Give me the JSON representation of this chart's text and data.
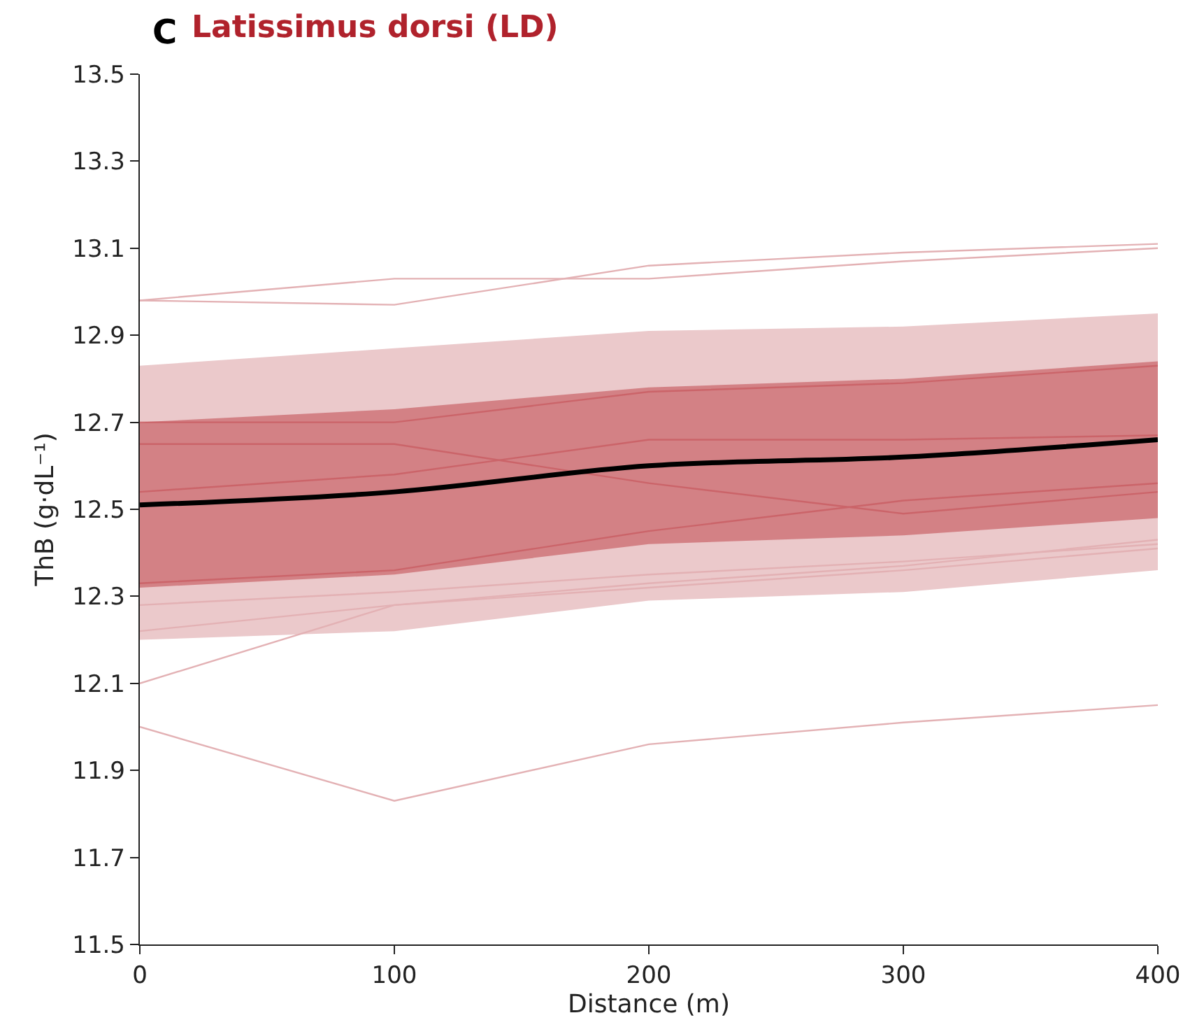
{
  "chart_data": {
    "type": "line",
    "title": "Latissimus dorsi (LD)",
    "annotations": [
      "C"
    ],
    "xlabel": "Distance (m)",
    "ylabel": "ThB (g·dL⁻¹)",
    "x": [
      0,
      100,
      200,
      300,
      400
    ],
    "xlim": [
      0,
      400
    ],
    "xticks": [
      0,
      100,
      200,
      300,
      400
    ],
    "ylim": [
      11.5,
      13.5
    ],
    "yticks": [
      11.5,
      11.7,
      11.9,
      12.1,
      12.3,
      12.5,
      12.7,
      12.9,
      13.1,
      13.3,
      13.5
    ],
    "marker": "none",
    "line_style": "solid",
    "series": [
      {
        "type": "area",
        "color": "#ebc9cb",
        "values": [
          null,
          null,
          null,
          null,
          null
        ],
        "lower": [
          12.2,
          12.22,
          12.29,
          12.31,
          12.36
        ],
        "upper": [
          12.83,
          12.87,
          12.91,
          12.92,
          12.95
        ]
      },
      {
        "color": "#d98a8c",
        "values": [
          12.7,
          12.7,
          12.77,
          12.79,
          12.83
        ]
      },
      {
        "color": "#d98a8c",
        "values": [
          12.65,
          12.65,
          12.56,
          12.49,
          12.54
        ]
      },
      {
        "color": "#d98a8c",
        "values": [
          12.54,
          12.58,
          12.66,
          12.66,
          12.67
        ]
      },
      {
        "color": "#d98a8c",
        "values": [
          12.33,
          12.36,
          12.45,
          12.52,
          12.56
        ]
      },
      {
        "color": "#e3b1b4",
        "values": [
          12.98,
          13.03,
          13.03,
          13.07,
          13.1
        ]
      },
      {
        "color": "#e3b1b4",
        "values": [
          12.98,
          12.97,
          13.06,
          13.09,
          13.11
        ]
      },
      {
        "color": "#e3b1b4",
        "values": [
          12.28,
          12.31,
          12.35,
          12.38,
          12.42
        ]
      },
      {
        "color": "#e3b1b4",
        "values": [
          12.22,
          12.28,
          12.33,
          12.37,
          12.43
        ]
      },
      {
        "color": "#e3b1b4",
        "values": [
          12.1,
          12.28,
          12.32,
          12.36,
          12.41
        ]
      },
      {
        "color": "#e3b1b4",
        "values": [
          12.0,
          11.83,
          11.96,
          12.01,
          12.05
        ]
      },
      {
        "color": "#000000",
        "values": [
          12.51,
          12.54,
          12.6,
          12.62,
          12.66
        ],
        "lower": [
          12.32,
          12.35,
          12.42,
          12.44,
          12.48
        ],
        "upper": [
          12.7,
          12.73,
          12.78,
          12.8,
          12.84
        ]
      }
    ]
  }
}
